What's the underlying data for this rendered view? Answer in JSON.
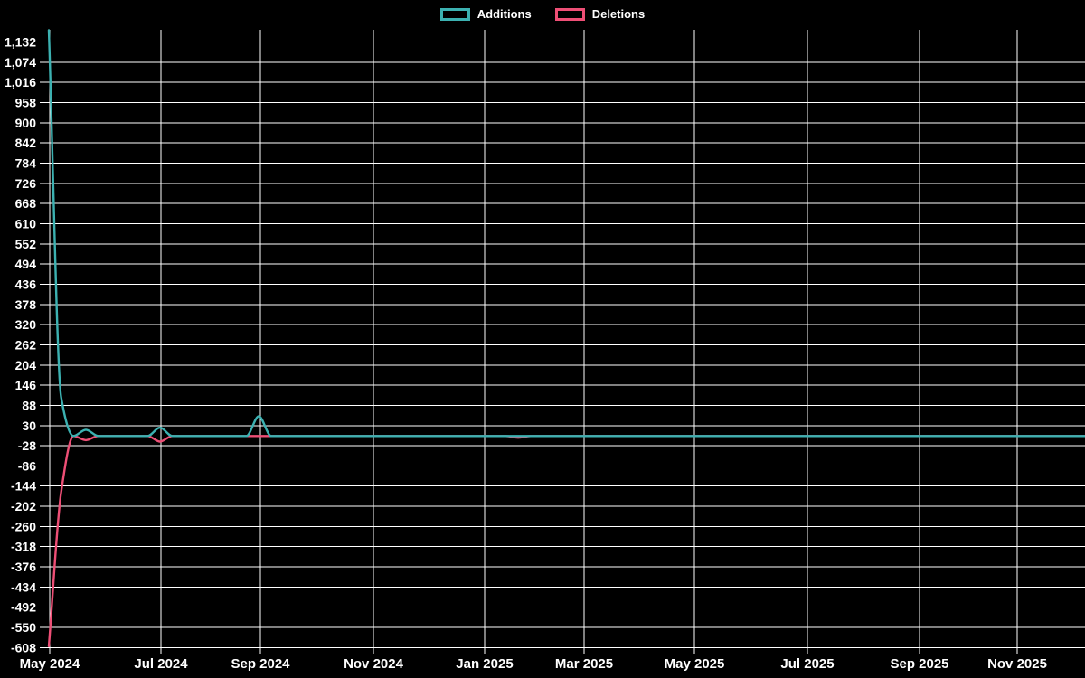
{
  "chart_data": {
    "type": "line",
    "title": "",
    "legend_position": "top-center",
    "grid": true,
    "background_color": "#000000",
    "grid_color": "#ffffff",
    "text_color": "#ffffff",
    "x_range": [
      "May 2024",
      "Nov 2025"
    ],
    "x_tick_labels": [
      "May 2024",
      "Jul 2024",
      "Sep 2024",
      "Nov 2024",
      "Jan 2025",
      "Mar 2025",
      "May 2025",
      "Jul 2025",
      "Sep 2025",
      "Nov 2025"
    ],
    "y_axis": {
      "max": 1132,
      "min": -608,
      "step": 58
    },
    "y_tick_labels": [
      "1,132",
      "1,074",
      "1,016",
      "958",
      "900",
      "842",
      "784",
      "726",
      "668",
      "610",
      "552",
      "494",
      "436",
      "378",
      "320",
      "262",
      "204",
      "146",
      "88",
      "30",
      "-28",
      "-86",
      "-144",
      "-202",
      "-260",
      "-318",
      "-376",
      "-434",
      "-492",
      "-550",
      "-608"
    ],
    "series": [
      {
        "name": "Additions",
        "color": "#3cb1b1",
        "weekly_values": [
          1166,
          110,
          0,
          18,
          0,
          0,
          0,
          0,
          0,
          24,
          0,
          0,
          0,
          0,
          0,
          0,
          0,
          57,
          0,
          0,
          0,
          0,
          0,
          0,
          0,
          0,
          0,
          0,
          0,
          0,
          0,
          0,
          0,
          0,
          0,
          0,
          0,
          0,
          0,
          0,
          0,
          0,
          0,
          0,
          0,
          0,
          0,
          0,
          0,
          0,
          0,
          0,
          0,
          0,
          0,
          0,
          0,
          0,
          0,
          0,
          0,
          0,
          0,
          0,
          0,
          0,
          0,
          0,
          0,
          0,
          0,
          0,
          0,
          0,
          0,
          0,
          0,
          0,
          0,
          0,
          0,
          0,
          0,
          0,
          0
        ]
      },
      {
        "name": "Deletions",
        "color": "#ee4f76",
        "weekly_values": [
          -604,
          -160,
          0,
          -12,
          0,
          0,
          0,
          0,
          0,
          -16,
          0,
          0,
          0,
          0,
          0,
          0,
          0,
          0,
          0,
          0,
          0,
          0,
          0,
          0,
          0,
          0,
          0,
          0,
          0,
          0,
          0,
          0,
          0,
          0,
          0,
          0,
          0,
          0,
          -5,
          0,
          0,
          0,
          0,
          0,
          0,
          0,
          0,
          0,
          0,
          0,
          0,
          0,
          0,
          0,
          0,
          0,
          0,
          0,
          0,
          0,
          0,
          0,
          0,
          0,
          0,
          0,
          0,
          0,
          0,
          0,
          0,
          0,
          0,
          0,
          0,
          0,
          0,
          0,
          0,
          0,
          0,
          0,
          0,
          0,
          0
        ]
      }
    ]
  }
}
